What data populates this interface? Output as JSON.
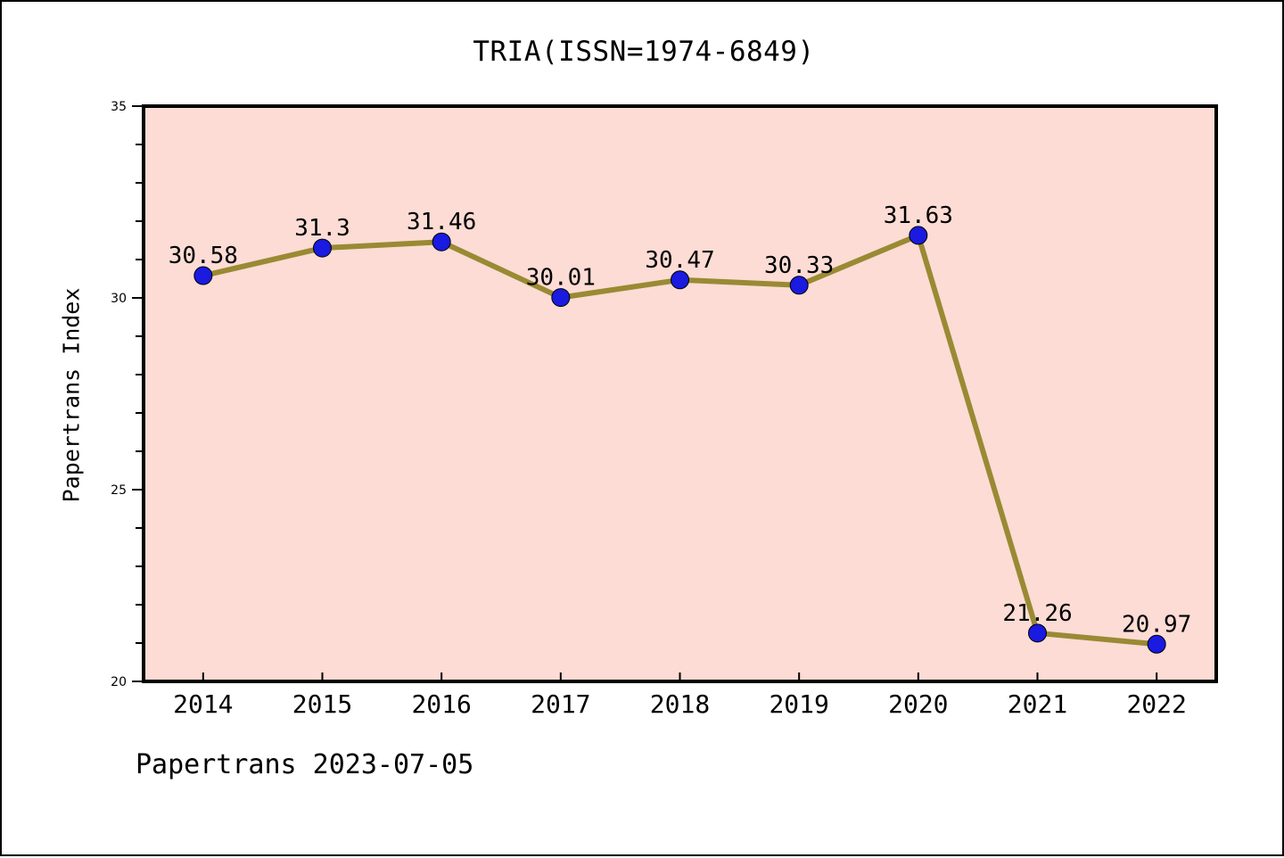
{
  "window": {
    "background": "#ffffff",
    "border_color": "#000000"
  },
  "chart": {
    "title": "TRIA(ISSN=1974-6849)",
    "ylabel": "Papertrans Index",
    "footer": "Papertrans 2023-07-05",
    "plot_bg": "#fcdcd5",
    "line_color": "#998a33",
    "marker_color": "#1a1ae0",
    "marker_edge_color": "#000000",
    "axis_color": "#000000",
    "text_color": "#000000"
  },
  "chart_data": {
    "type": "line",
    "title": "TRIA(ISSN=1974-6849)",
    "xlabel": "",
    "ylabel": "Papertrans Index",
    "x": [
      "2014",
      "2015",
      "2016",
      "2017",
      "2018",
      "2019",
      "2020",
      "2021",
      "2022"
    ],
    "series": [
      {
        "name": "Papertrans Index",
        "values": [
          30.58,
          31.3,
          31.46,
          30.01,
          30.47,
          30.33,
          31.63,
          21.26,
          20.97
        ]
      }
    ],
    "point_labels": [
      "30.58",
      "31.3",
      "31.46",
      "30.01",
      "30.47",
      "30.33",
      "31.63",
      "21.26",
      "20.97"
    ],
    "ylim": [
      20,
      35
    ],
    "yticks": [
      20,
      25,
      30,
      35
    ],
    "ytick_labels": [
      "20",
      "25",
      "30",
      "35"
    ],
    "minor_ytick_step": 1,
    "grid": false,
    "legend": null,
    "annotations": [
      "Papertrans 2023-07-05"
    ]
  }
}
